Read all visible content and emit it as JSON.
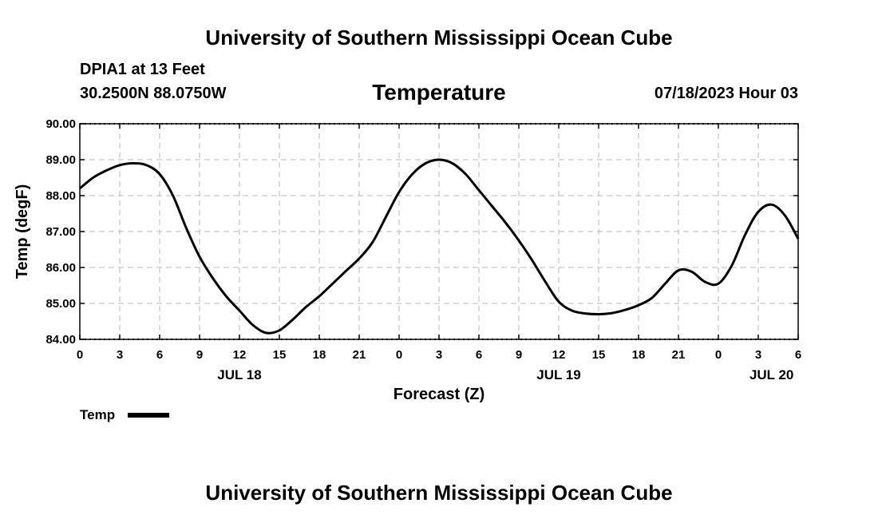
{
  "page": {
    "title_top": "University of Southern Mississippi Ocean Cube",
    "title_bottom": "University of Southern Mississippi Ocean Cube",
    "station": "DPIA1 at 13 Feet",
    "coords": "30.2500N  88.0750W",
    "timestamp": "07/18/2023 Hour 03"
  },
  "chart_data": {
    "type": "line",
    "title": "Temperature",
    "xlabel": "Forecast (Z)",
    "ylabel": "Temp (degF)",
    "xlim": [
      0,
      54
    ],
    "ylim": [
      84,
      90
    ],
    "grid": true,
    "y_ticks": [
      "84.00",
      "85.00",
      "86.00",
      "87.00",
      "88.00",
      "89.00",
      "90.00"
    ],
    "y_tick_values": [
      84,
      85,
      86,
      87,
      88,
      89,
      90
    ],
    "x_tick_values": [
      0,
      3,
      6,
      9,
      12,
      15,
      18,
      21,
      24,
      27,
      30,
      33,
      36,
      39,
      42,
      45,
      48,
      51,
      54
    ],
    "x_tick_labels": [
      "0",
      "3",
      "6",
      "9",
      "12",
      "15",
      "18",
      "21",
      "0",
      "3",
      "6",
      "9",
      "12",
      "15",
      "18",
      "21",
      "0",
      "3",
      "6"
    ],
    "date_labels": [
      {
        "label": "JUL 18",
        "hour": 12
      },
      {
        "label": "JUL 19",
        "hour": 36
      },
      {
        "label": "JUL 20",
        "hour": 52
      }
    ],
    "legend": {
      "placement": "bottom-left",
      "entries": [
        "Temp"
      ]
    },
    "series": [
      {
        "name": "Temp",
        "color": "#000000",
        "x": [
          0,
          1,
          2,
          3,
          4,
          5,
          6,
          7,
          8,
          9,
          10,
          11,
          12,
          13,
          14,
          15,
          16,
          17,
          18,
          19,
          20,
          21,
          22,
          23,
          24,
          25,
          26,
          27,
          28,
          29,
          30,
          31,
          32,
          33,
          34,
          35,
          36,
          37,
          38,
          39,
          40,
          41,
          42,
          43,
          44,
          45,
          46,
          47,
          48,
          49,
          50,
          51,
          52,
          53,
          54
        ],
        "values": [
          88.2,
          88.5,
          88.7,
          88.85,
          88.9,
          88.85,
          88.6,
          88.0,
          87.1,
          86.3,
          85.7,
          85.2,
          84.8,
          84.4,
          84.18,
          84.25,
          84.55,
          84.9,
          85.2,
          85.55,
          85.9,
          86.25,
          86.7,
          87.4,
          88.1,
          88.6,
          88.9,
          89.0,
          88.9,
          88.6,
          88.15,
          87.7,
          87.25,
          86.75,
          86.2,
          85.6,
          85.05,
          84.8,
          84.72,
          84.7,
          84.73,
          84.82,
          84.95,
          85.15,
          85.55,
          85.92,
          85.88,
          85.6,
          85.55,
          86.05,
          86.9,
          87.55,
          87.75,
          87.45,
          86.8
        ]
      }
    ]
  }
}
